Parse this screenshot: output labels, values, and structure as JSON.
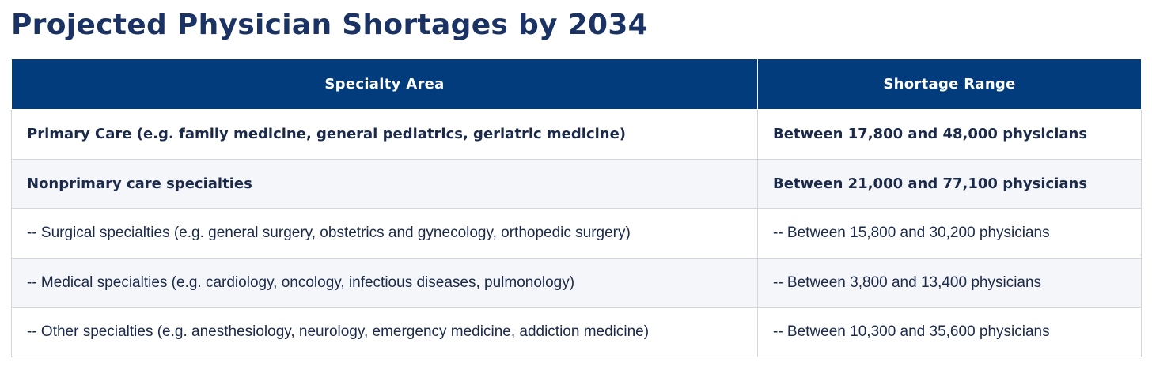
{
  "title": "Projected Physician Shortages by 2034",
  "table": {
    "headers": [
      "Specialty Area",
      "Shortage Range"
    ],
    "rows": [
      {
        "area": "Primary Care (e.g. family medicine, general pediatrics, geriatric medicine)",
        "range": "Between 17,800 and 48,000 physicians",
        "style": "bold"
      },
      {
        "area": "Nonprimary care specialties",
        "range": "Between 21,000 and 77,100 physicians",
        "style": "bold"
      },
      {
        "area": "-- Surgical specialties (e.g. general surgery, obstetrics and gynecology, orthopedic surgery)",
        "range": "-- Between 15,800 and 30,200 physicians",
        "style": "normal"
      },
      {
        "area": "-- Medical specialties (e.g. cardiology, oncology, infectious diseases, pulmonology)",
        "range": "-- Between 3,800 and 13,400 physicians",
        "style": "normal"
      },
      {
        "area": "-- Other specialties (e.g. anesthesiology, neurology, emergency medicine, addiction medicine)",
        "range": "-- Between 10,300 and 35,600 physicians",
        "style": "normal"
      }
    ]
  },
  "colors": {
    "header_bg": "#023c7c",
    "title": "#1b3264",
    "stripe": "#f4f6f9"
  }
}
